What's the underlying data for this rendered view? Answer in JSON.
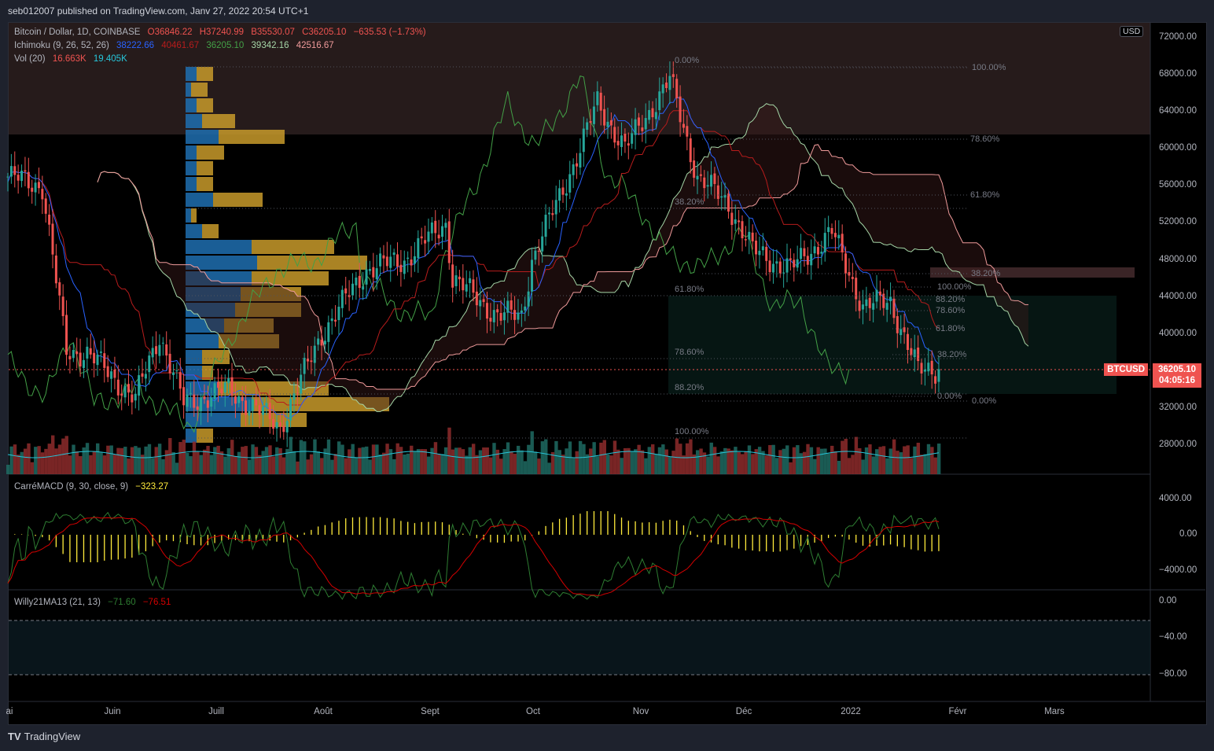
{
  "published": "seb012007 published on TradingView.com, Janv 27, 2022 20:54 UTC+1",
  "main_legend": {
    "symbol": "Bitcoin / Dollar, 1D, COINBASE",
    "open": "O36846.22",
    "high": "H37240.99",
    "low": "B35530.07",
    "close": "C36205.10",
    "change": "−635.53 (−1.73%)"
  },
  "ichimoku_legend": {
    "name": "Ichimoku (9, 26, 52, 26)",
    "values": [
      "38222.66",
      "40461.67",
      "36205.10",
      "39342.16",
      "42516.67"
    ],
    "colors": [
      "#2962ff",
      "#b71c1c",
      "#43a047",
      "#a5d6a7",
      "#ef9a9a"
    ]
  },
  "vol_legend": {
    "name": "Vol (20)",
    "values": [
      "16.663K",
      "19.405K"
    ],
    "colors": [
      "#ef5350",
      "#26c6da"
    ]
  },
  "macd_legend": {
    "name": "CarréMACD (9, 30, close, 9)",
    "value": "−323.27"
  },
  "willy_legend": {
    "name": "Willy21MA13 (21, 13)",
    "values": [
      "−71.60",
      "−76.51"
    ],
    "colors": [
      "#2e7d32",
      "#d50000"
    ]
  },
  "price_axis": {
    "currency": "USD",
    "ticks": [
      "72000.00",
      "68000.00",
      "64000.00",
      "60000.00",
      "56000.00",
      "52000.00",
      "48000.00",
      "44000.00",
      "40000.00",
      "32000.00",
      "28000.00"
    ],
    "last_price": "36205.10",
    "countdown": "04:05:16",
    "symbol_tag": "BTCUSD"
  },
  "macd_axis": {
    "ticks": [
      "4000.00",
      "0.00",
      "−4000.00"
    ]
  },
  "willy_axis": {
    "ticks": [
      "0.00",
      "−40.00",
      "−80.00"
    ]
  },
  "time_axis": {
    "ticks": [
      "ai",
      "Juin",
      "Juill",
      "Août",
      "Sept",
      "Oct",
      "Nov",
      "Déc",
      "2022",
      "Févr",
      "Mars"
    ]
  },
  "fib_a": [
    "0.00%",
    "38.20%",
    "61.80%",
    "78.60%",
    "88.20%",
    "100.00%"
  ],
  "fib_b": [
    "100.00%",
    "78.60%",
    "61.80%",
    "38.20%",
    "0.00%"
  ],
  "fib_c": [
    "100.00%",
    "88.20%",
    "78.60%",
    "61.80%",
    "38.20%",
    "0.00%"
  ],
  "brand": "TradingView",
  "colors": {
    "up": "#26a69a",
    "down": "#ef5350",
    "tenkan": "#2962ff",
    "kijun": "#b71c1c",
    "chikou": "#43a047",
    "macd": "#ffeb3b"
  },
  "price_path": {
    "days": [
      0,
      10,
      17,
      23,
      37,
      44,
      51,
      64,
      79,
      91,
      104,
      115,
      127,
      129,
      142,
      149,
      152,
      166,
      171,
      179,
      192,
      200,
      209,
      216,
      227,
      239,
      248,
      256,
      264,
      270
    ],
    "close": [
      57000,
      56000,
      38000,
      38000,
      33000,
      40000,
      32500,
      34000,
      30000,
      40000,
      47000,
      48000,
      52000,
      46000,
      42000,
      42000,
      48000,
      60000,
      65000,
      60000,
      67500,
      57000,
      54000,
      49000,
      47000,
      51000,
      43000,
      43500,
      36000,
      36205
    ]
  },
  "volume_profile": [
    [
      2,
      3
    ],
    [
      1,
      3
    ],
    [
      2,
      3
    ],
    [
      3,
      6
    ],
    [
      6,
      12
    ],
    [
      2,
      5
    ],
    [
      2,
      3
    ],
    [
      2,
      3
    ],
    [
      5,
      9
    ],
    [
      1,
      1
    ],
    [
      3,
      3
    ],
    [
      12,
      15
    ],
    [
      13,
      20
    ],
    [
      12,
      14
    ],
    [
      10,
      11
    ],
    [
      9,
      12
    ],
    [
      7,
      9
    ],
    [
      6,
      11
    ],
    [
      3,
      5
    ],
    [
      3,
      2
    ],
    [
      6,
      20
    ],
    [
      12,
      25
    ],
    [
      10,
      12
    ],
    [
      2,
      3
    ]
  ]
}
